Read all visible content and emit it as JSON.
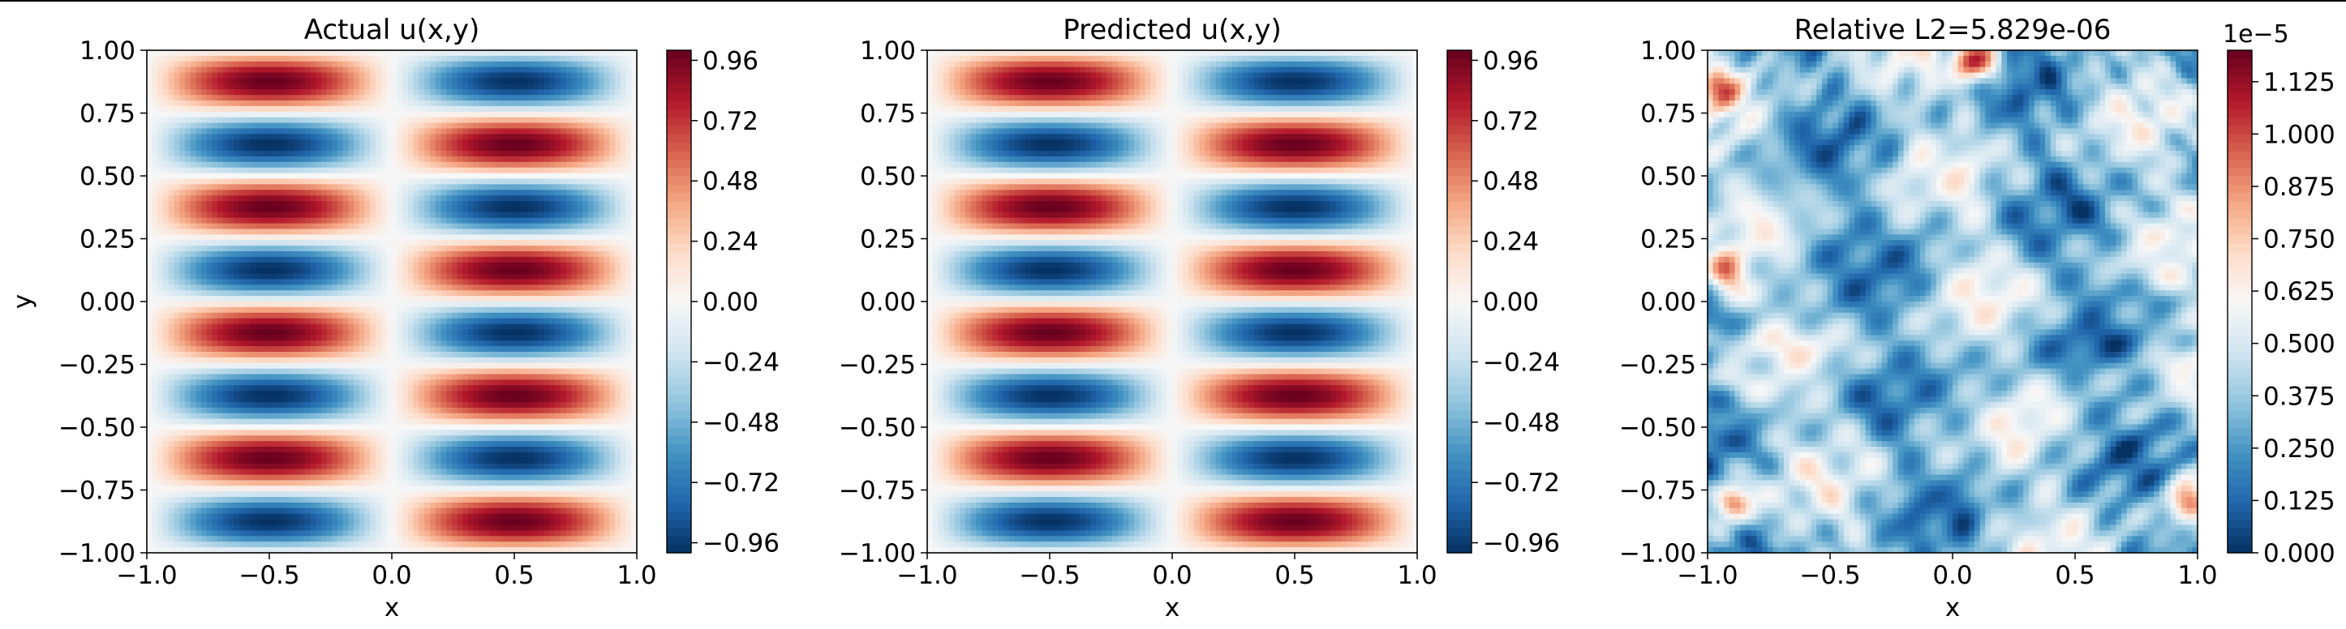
{
  "colors": {
    "cmap": [
      "#053061",
      "#2166ac",
      "#4393c3",
      "#92c5de",
      "#d1e5f0",
      "#f7f7f7",
      "#fddbc7",
      "#f4a582",
      "#d6604d",
      "#b2182b",
      "#67001f"
    ]
  },
  "chart_data": [
    {
      "type": "heatmap",
      "title": "Actual u(x,y)",
      "xlabel": "x",
      "ylabel": "y",
      "xlim": [
        -1.0,
        1.0
      ],
      "ylim": [
        -1.0,
        1.0
      ],
      "xticks": [
        "−1.0",
        "−0.5",
        "0.0",
        "0.5",
        "1.0"
      ],
      "yticks": [
        "−1.00",
        "−0.75",
        "−0.50",
        "−0.25",
        "0.00",
        "0.25",
        "0.50",
        "0.75",
        "1.00"
      ],
      "field": "u = sin(pi*x) * sin(4*pi*y)",
      "colorbar": {
        "min": -1.0,
        "max": 1.0,
        "ticks": [
          "−0.96",
          "−0.72",
          "−0.48",
          "−0.24",
          "0.00",
          "0.24",
          "0.48",
          "0.72",
          "0.96"
        ],
        "tick_values": [
          -0.96,
          -0.72,
          -0.48,
          -0.24,
          0.0,
          0.24,
          0.48,
          0.72,
          0.96
        ],
        "offset_label": ""
      }
    },
    {
      "type": "heatmap",
      "title": "Predicted u(x,y)",
      "xlabel": "x",
      "ylabel": "",
      "xlim": [
        -1.0,
        1.0
      ],
      "ylim": [
        -1.0,
        1.0
      ],
      "xticks": [
        "−1.0",
        "−0.5",
        "0.0",
        "0.5",
        "1.0"
      ],
      "yticks": [
        "−1.00",
        "−0.75",
        "−0.50",
        "−0.25",
        "0.00",
        "0.25",
        "0.50",
        "0.75",
        "1.00"
      ],
      "field": "u = sin(pi*x) * sin(4*pi*y)",
      "colorbar": {
        "min": -1.0,
        "max": 1.0,
        "ticks": [
          "−0.96",
          "−0.72",
          "−0.48",
          "−0.24",
          "0.00",
          "0.24",
          "0.48",
          "0.72",
          "0.96"
        ],
        "tick_values": [
          -0.96,
          -0.72,
          -0.48,
          -0.24,
          0.0,
          0.24,
          0.48,
          0.72,
          0.96
        ],
        "offset_label": ""
      }
    },
    {
      "type": "heatmap",
      "title": "Relative L2=5.829e-06",
      "xlabel": "x",
      "ylabel": "",
      "xlim": [
        -1.0,
        1.0
      ],
      "ylim": [
        -1.0,
        1.0
      ],
      "xticks": [
        "−1.0",
        "−0.5",
        "0.0",
        "0.5",
        "1.0"
      ],
      "yticks": [
        "−1.00",
        "−0.75",
        "−0.50",
        "−0.25",
        "0.00",
        "0.25",
        "0.50",
        "0.75",
        "1.00"
      ],
      "field": "absolute error (noisy, mostly 0.2e-5 to 0.6e-5 with hot spots near the left edge and top)",
      "colorbar": {
        "min": 0.0,
        "max": 1.2,
        "ticks": [
          "0.000",
          "0.125",
          "0.250",
          "0.375",
          "0.500",
          "0.625",
          "0.750",
          "0.875",
          "1.000",
          "1.125"
        ],
        "tick_values": [
          0.0,
          0.125,
          0.25,
          0.375,
          0.5,
          0.625,
          0.75,
          0.875,
          1.0,
          1.125
        ],
        "offset_label": "1e−5"
      }
    }
  ]
}
